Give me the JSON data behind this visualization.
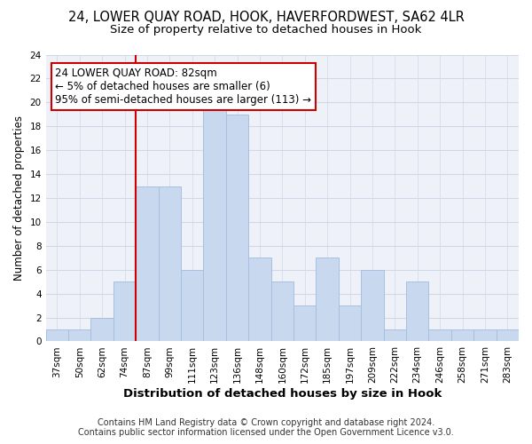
{
  "title": "24, LOWER QUAY ROAD, HOOK, HAVERFORDWEST, SA62 4LR",
  "subtitle": "Size of property relative to detached houses in Hook",
  "xlabel": "Distribution of detached houses by size in Hook",
  "ylabel": "Number of detached properties",
  "bar_labels": [
    "37sqm",
    "50sqm",
    "62sqm",
    "74sqm",
    "87sqm",
    "99sqm",
    "111sqm",
    "123sqm",
    "136sqm",
    "148sqm",
    "160sqm",
    "172sqm",
    "185sqm",
    "197sqm",
    "209sqm",
    "222sqm",
    "234sqm",
    "246sqm",
    "258sqm",
    "271sqm",
    "283sqm"
  ],
  "bar_values": [
    1,
    1,
    2,
    5,
    13,
    13,
    6,
    20,
    19,
    7,
    5,
    3,
    7,
    3,
    6,
    1,
    5,
    1,
    1,
    1,
    1
  ],
  "bar_color": "#c8d8ee",
  "bar_edge_color": "#a8c0e0",
  "vline_color": "#cc0000",
  "ylim": [
    0,
    24
  ],
  "yticks": [
    0,
    2,
    4,
    6,
    8,
    10,
    12,
    14,
    16,
    18,
    20,
    22,
    24
  ],
  "annotation_title": "24 LOWER QUAY ROAD: 82sqm",
  "annotation_line1": "← 5% of detached houses are smaller (6)",
  "annotation_line2": "95% of semi-detached houses are larger (113) →",
  "annotation_box_color": "#ffffff",
  "annotation_box_edge": "#cc0000",
  "footer1": "Contains HM Land Registry data © Crown copyright and database right 2024.",
  "footer2": "Contains public sector information licensed under the Open Government Licence v3.0.",
  "title_fontsize": 10.5,
  "subtitle_fontsize": 9.5,
  "xlabel_fontsize": 9.5,
  "ylabel_fontsize": 8.5,
  "tick_fontsize": 7.5,
  "footer_fontsize": 7,
  "annotation_fontsize": 8.5,
  "grid_color": "#d0d8e8",
  "bg_color": "#eef2f8"
}
